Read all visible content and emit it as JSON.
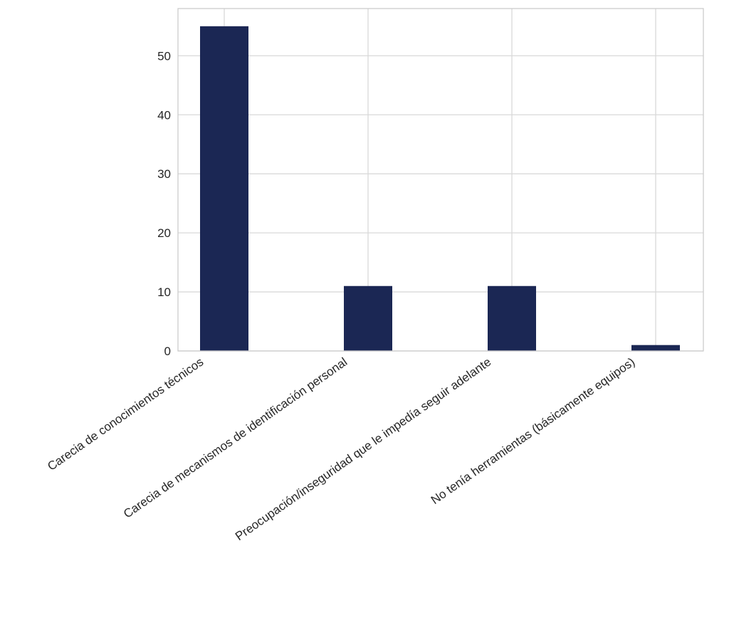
{
  "chart_data": {
    "type": "bar",
    "categories": [
      "Carecia de conocimientos técnicos",
      "Carecia de mecanismos de identificación personal",
      "Preocupación/inseguridad que le impedía seguir adelante",
      "No tenía herramientas (básicamente equipos)"
    ],
    "values": [
      55,
      11,
      11,
      1
    ],
    "title": "",
    "xlabel": "",
    "ylabel": "",
    "ylim": [
      0,
      58
    ],
    "yticks": [
      0,
      10,
      20,
      30,
      40,
      50
    ],
    "grid": true,
    "bar_color": "#1b2754",
    "grid_color": "#d9d9d9",
    "frame_color": "#cccccc",
    "background_color": "#ffffff"
  }
}
